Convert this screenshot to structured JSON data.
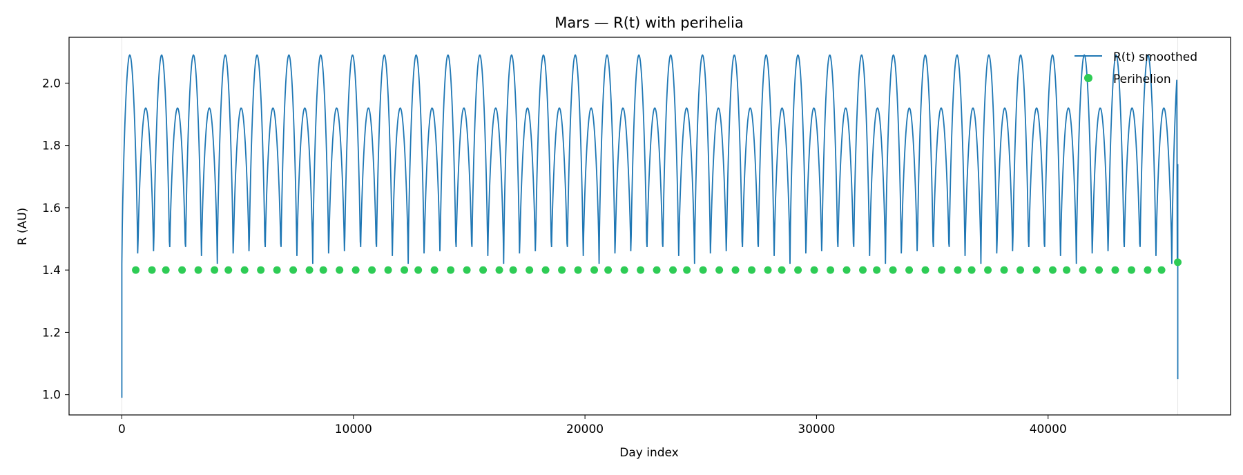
{
  "chart_data": {
    "type": "line",
    "title": "Mars — R(t) with perihelia",
    "xlabel": "Day index",
    "ylabel": "R (AU)",
    "xlim": [
      -2280,
      47880
    ],
    "ylim": [
      0.935,
      2.147
    ],
    "xticks": [
      0,
      10000,
      20000,
      30000,
      40000
    ],
    "yticks": [
      1.0,
      1.2,
      1.4,
      1.6,
      1.8,
      2.0
    ],
    "ytick_labels": [
      "1.0",
      "1.2",
      "1.4",
      "1.6",
      "1.8",
      "2.0"
    ],
    "grid": false,
    "legend_position": "top-right",
    "series": [
      {
        "name": "R(t) smoothed",
        "kind": "line",
        "color": "#1f77b4",
        "model": {
          "x_start": 0,
          "x_end": 45600,
          "period_days": 687,
          "dip_period_days": 1374,
          "baseline": 1.42,
          "peak_high": 2.09,
          "peak_low": 1.92,
          "start_value": 0.99,
          "end_value": 1.05,
          "end_spike": 1.74
        }
      },
      {
        "name": "Perihelion",
        "kind": "scatter",
        "color": "#2ecc55",
        "x": [
          600,
          1300,
          1900,
          2600,
          3300,
          4000,
          4600,
          5300,
          6000,
          6700,
          7400,
          8100,
          8700,
          9400,
          10100,
          10800,
          11500,
          12200,
          12800,
          13500,
          14200,
          14900,
          15600,
          16300,
          16900,
          17600,
          18300,
          19000,
          19700,
          20400,
          21000,
          21700,
          22400,
          23100,
          23800,
          24400,
          25100,
          25800,
          26500,
          27200,
          27900,
          28500,
          29200,
          29900,
          30600,
          31300,
          32000,
          32600,
          33300,
          34000,
          34700,
          35400,
          36100,
          36700,
          37400,
          38100,
          38800,
          39500,
          40200,
          40800,
          41500,
          42200,
          42900,
          43600,
          44300,
          44900,
          45600
        ],
        "y": [
          1.4,
          1.4,
          1.4,
          1.4,
          1.4,
          1.4,
          1.4,
          1.4,
          1.4,
          1.4,
          1.4,
          1.4,
          1.4,
          1.4,
          1.4,
          1.4,
          1.4,
          1.4,
          1.4,
          1.4,
          1.4,
          1.4,
          1.4,
          1.4,
          1.4,
          1.4,
          1.4,
          1.4,
          1.4,
          1.4,
          1.4,
          1.4,
          1.4,
          1.4,
          1.4,
          1.4,
          1.4,
          1.4,
          1.4,
          1.4,
          1.4,
          1.4,
          1.4,
          1.4,
          1.4,
          1.4,
          1.4,
          1.4,
          1.4,
          1.4,
          1.4,
          1.4,
          1.4,
          1.4,
          1.4,
          1.4,
          1.4,
          1.4,
          1.4,
          1.4,
          1.4,
          1.4,
          1.4,
          1.4,
          1.4,
          1.4,
          1.425
        ]
      }
    ]
  }
}
